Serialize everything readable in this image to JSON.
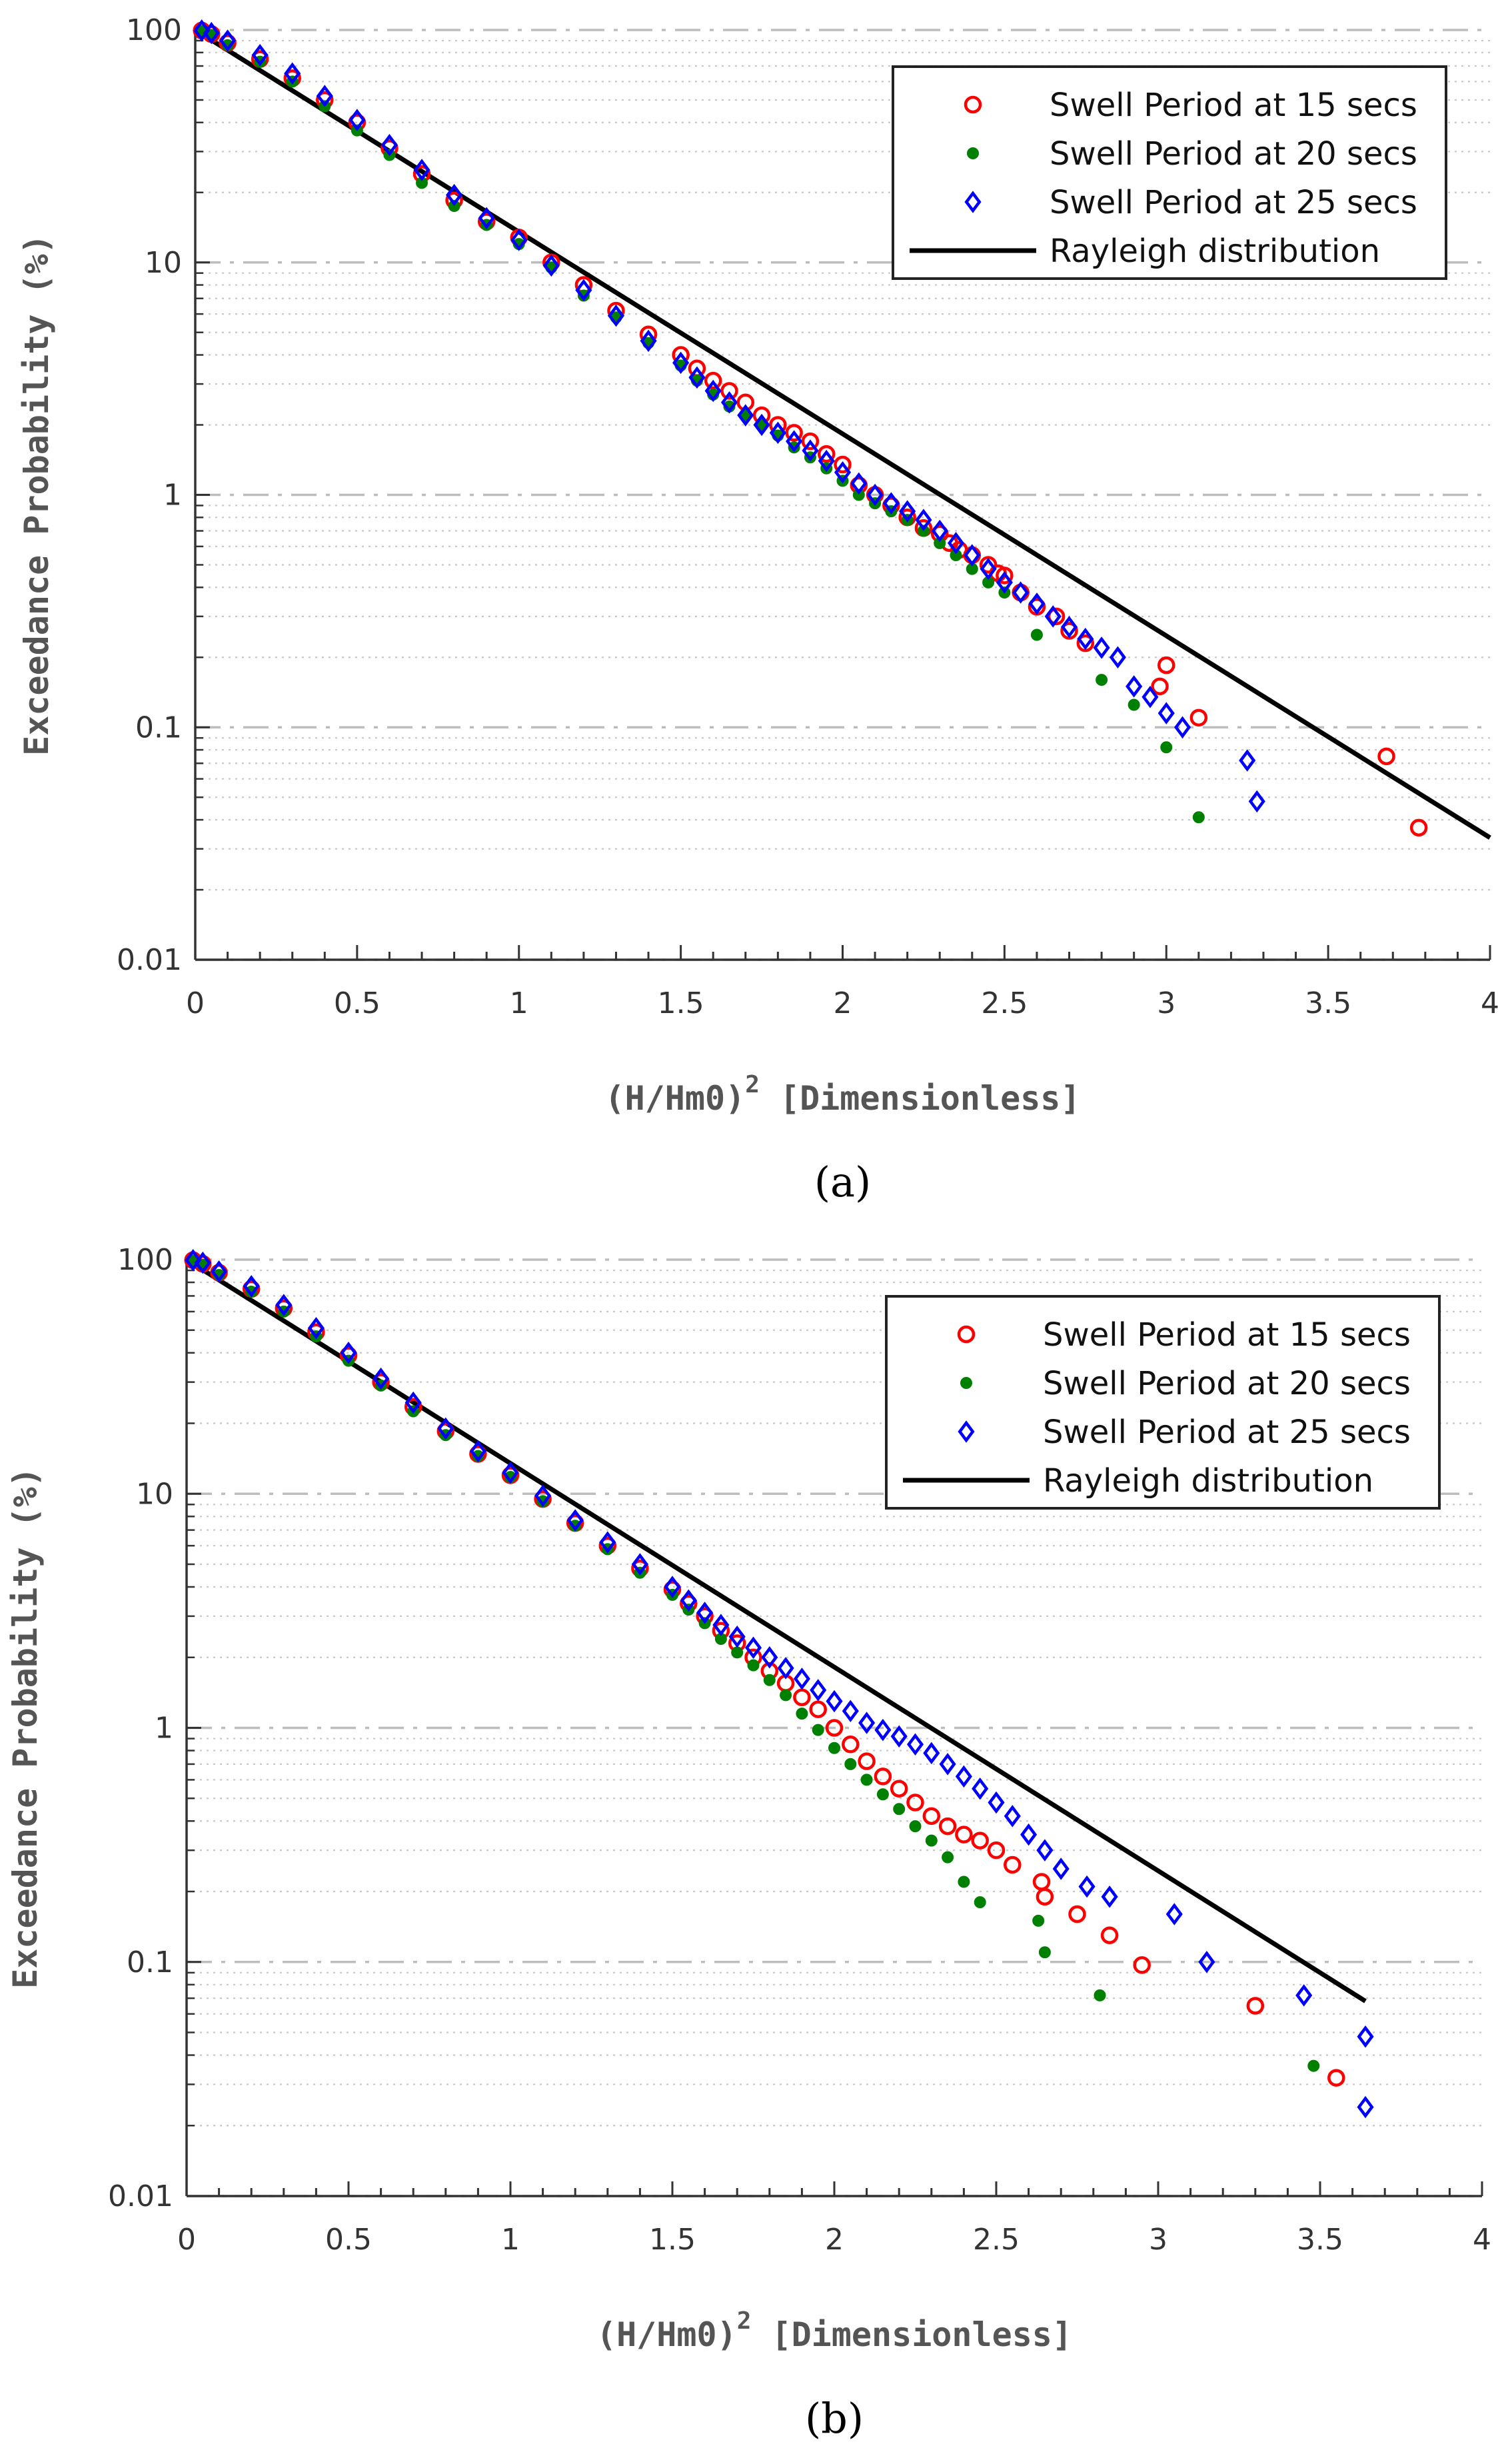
{
  "chart_data": [
    {
      "type": "scatter",
      "caption": "(a)",
      "xlabel": "(H/Hm0)",
      "xlabel_sup": "2",
      "xlabel_suffix": " [Dimensionless]",
      "ylabel": "Exceedance Probability (%)",
      "xlim": [
        0,
        4
      ],
      "ylim": [
        0.01,
        100
      ],
      "yscale": "log",
      "grid": true,
      "legend_position": "top-right",
      "x_ticks": [
        "0",
        "0.5",
        "1",
        "1.5",
        "2",
        "2.5",
        "3",
        "3.5",
        "4"
      ],
      "y_ticks": [
        "0.01",
        "0.1",
        "1",
        "10",
        "100"
      ],
      "series": [
        {
          "name": "Swell Period at 15 secs",
          "marker": "circle",
          "color": "#ff0000",
          "x": [
            0.02,
            0.05,
            0.1,
            0.2,
            0.3,
            0.4,
            0.5,
            0.6,
            0.7,
            0.8,
            0.9,
            1.0,
            1.1,
            1.2,
            1.3,
            1.4,
            1.5,
            1.55,
            1.6,
            1.65,
            1.7,
            1.75,
            1.8,
            1.85,
            1.9,
            1.95,
            2.0,
            2.05,
            2.1,
            2.15,
            2.2,
            2.25,
            2.3,
            2.33,
            2.36,
            2.4,
            2.45,
            2.48,
            2.5,
            2.55,
            2.6,
            2.66,
            2.7,
            2.75,
            2.98,
            3.0,
            3.1,
            3.68,
            3.78
          ],
          "y": [
            99.5,
            96,
            88,
            75,
            62,
            50,
            40,
            31,
            24,
            18.5,
            15,
            12.8,
            10,
            8,
            6.2,
            4.9,
            4.0,
            3.5,
            3.1,
            2.8,
            2.5,
            2.2,
            2.0,
            1.85,
            1.7,
            1.5,
            1.35,
            1.1,
            1.0,
            0.9,
            0.8,
            0.72,
            0.68,
            0.62,
            0.58,
            0.55,
            0.5,
            0.46,
            0.45,
            0.38,
            0.33,
            0.3,
            0.26,
            0.23,
            0.15,
            0.185,
            0.11,
            0.075,
            0.037
          ]
        },
        {
          "name": "Swell Period at 20 secs",
          "marker": "dot",
          "color": "#008000",
          "x": [
            0.02,
            0.05,
            0.1,
            0.2,
            0.3,
            0.4,
            0.5,
            0.6,
            0.7,
            0.8,
            0.9,
            1.0,
            1.1,
            1.2,
            1.3,
            1.4,
            1.5,
            1.55,
            1.6,
            1.65,
            1.7,
            1.75,
            1.8,
            1.85,
            1.9,
            1.95,
            2.0,
            2.05,
            2.1,
            2.15,
            2.2,
            2.25,
            2.3,
            2.35,
            2.4,
            2.45,
            2.5,
            2.6,
            2.8,
            2.9,
            3.0,
            3.1
          ],
          "y": [
            99,
            95,
            86,
            73,
            60,
            47,
            37,
            29,
            22,
            17.5,
            14.5,
            12,
            9.5,
            7.2,
            5.8,
            4.5,
            3.6,
            3.1,
            2.7,
            2.4,
            2.2,
            2.0,
            1.8,
            1.6,
            1.45,
            1.3,
            1.15,
            1.0,
            0.92,
            0.85,
            0.78,
            0.7,
            0.62,
            0.55,
            0.48,
            0.42,
            0.38,
            0.25,
            0.16,
            0.125,
            0.082,
            0.041
          ]
        },
        {
          "name": "Swell Period at 25 secs",
          "marker": "diamond",
          "color": "#0000ff",
          "x": [
            0.02,
            0.05,
            0.1,
            0.2,
            0.3,
            0.4,
            0.5,
            0.6,
            0.7,
            0.8,
            0.9,
            1.0,
            1.1,
            1.2,
            1.3,
            1.4,
            1.5,
            1.55,
            1.6,
            1.65,
            1.7,
            1.75,
            1.8,
            1.85,
            1.9,
            1.95,
            2.0,
            2.05,
            2.1,
            2.15,
            2.2,
            2.25,
            2.3,
            2.35,
            2.4,
            2.45,
            2.5,
            2.55,
            2.6,
            2.65,
            2.7,
            2.75,
            2.8,
            2.85,
            2.9,
            2.95,
            3.0,
            3.05,
            3.25,
            3.28
          ],
          "y": [
            99.5,
            97,
            90,
            78,
            65,
            52,
            41,
            32,
            25,
            19.5,
            15.5,
            12.5,
            9.7,
            7.6,
            5.9,
            4.6,
            3.7,
            3.2,
            2.8,
            2.5,
            2.2,
            2.0,
            1.85,
            1.7,
            1.55,
            1.4,
            1.25,
            1.12,
            1.0,
            0.92,
            0.85,
            0.78,
            0.7,
            0.62,
            0.55,
            0.48,
            0.42,
            0.38,
            0.34,
            0.3,
            0.27,
            0.24,
            0.22,
            0.2,
            0.15,
            0.135,
            0.115,
            0.1,
            0.072,
            0.048
          ]
        },
        {
          "name": "Rayleigh distribution",
          "marker": "line",
          "color": "#000000",
          "x": [
            0,
            4
          ],
          "y": [
            100,
            0.0335
          ]
        }
      ]
    },
    {
      "type": "scatter",
      "caption": "(b)",
      "xlabel": "(H/Hm0)",
      "xlabel_sup": "2",
      "xlabel_suffix": " [Dimensionless]",
      "ylabel": "Exceedance Probability (%)",
      "xlim": [
        0,
        4
      ],
      "ylim": [
        0.01,
        100
      ],
      "yscale": "log",
      "grid": true,
      "legend_position": "top-right",
      "x_ticks": [
        "0",
        "0.5",
        "1",
        "1.5",
        "2",
        "2.5",
        "3",
        "3.5",
        "4"
      ],
      "y_ticks": [
        "0.01",
        "0.1",
        "1",
        "10",
        "100"
      ],
      "series": [
        {
          "name": "Swell Period at 15 secs",
          "marker": "circle",
          "color": "#ff0000",
          "x": [
            0.02,
            0.05,
            0.1,
            0.2,
            0.3,
            0.4,
            0.5,
            0.6,
            0.7,
            0.8,
            0.9,
            1.0,
            1.1,
            1.2,
            1.3,
            1.4,
            1.5,
            1.55,
            1.6,
            1.65,
            1.7,
            1.75,
            1.8,
            1.85,
            1.9,
            1.95,
            2.0,
            2.05,
            2.1,
            2.15,
            2.2,
            2.25,
            2.3,
            2.35,
            2.4,
            2.45,
            2.5,
            2.55,
            2.64,
            2.65,
            2.75,
            2.85,
            2.95,
            3.3,
            3.55
          ],
          "y": [
            99.5,
            96,
            88,
            75,
            62,
            49,
            39,
            30,
            23.5,
            18.5,
            14.8,
            12,
            9.5,
            7.5,
            6.0,
            4.8,
            3.9,
            3.4,
            3.0,
            2.6,
            2.3,
            2.0,
            1.75,
            1.55,
            1.35,
            1.2,
            1.0,
            0.85,
            0.72,
            0.62,
            0.55,
            0.48,
            0.42,
            0.38,
            0.35,
            0.33,
            0.3,
            0.26,
            0.22,
            0.19,
            0.16,
            0.13,
            0.097,
            0.065,
            0.032
          ]
        },
        {
          "name": "Swell Period at 20 secs",
          "marker": "dot",
          "color": "#008000",
          "x": [
            0.02,
            0.05,
            0.1,
            0.2,
            0.3,
            0.4,
            0.5,
            0.6,
            0.7,
            0.8,
            0.9,
            1.0,
            1.1,
            1.2,
            1.3,
            1.4,
            1.5,
            1.55,
            1.6,
            1.65,
            1.7,
            1.75,
            1.8,
            1.85,
            1.9,
            1.95,
            2.0,
            2.05,
            2.1,
            2.15,
            2.2,
            2.25,
            2.3,
            2.35,
            2.4,
            2.45,
            2.63,
            2.65,
            2.82,
            3.48
          ],
          "y": [
            99,
            95,
            86,
            73,
            60,
            47,
            37,
            29,
            22.5,
            17.8,
            14.5,
            11.8,
            9.3,
            7.3,
            5.8,
            4.6,
            3.7,
            3.2,
            2.8,
            2.4,
            2.1,
            1.85,
            1.6,
            1.38,
            1.15,
            0.98,
            0.82,
            0.7,
            0.6,
            0.52,
            0.45,
            0.38,
            0.33,
            0.28,
            0.22,
            0.18,
            0.15,
            0.11,
            0.072,
            0.036
          ]
        },
        {
          "name": "Swell Period at 25 secs",
          "marker": "diamond",
          "color": "#0000ff",
          "x": [
            0.02,
            0.05,
            0.1,
            0.2,
            0.3,
            0.4,
            0.5,
            0.6,
            0.7,
            0.8,
            0.9,
            1.0,
            1.1,
            1.2,
            1.3,
            1.4,
            1.5,
            1.55,
            1.6,
            1.65,
            1.7,
            1.75,
            1.8,
            1.85,
            1.9,
            1.95,
            2.0,
            2.05,
            2.1,
            2.15,
            2.2,
            2.25,
            2.3,
            2.35,
            2.4,
            2.45,
            2.5,
            2.55,
            2.6,
            2.65,
            2.7,
            2.78,
            2.85,
            3.05,
            3.15,
            3.45,
            3.64,
            3.64
          ],
          "y": [
            99.5,
            97,
            89,
            77,
            64,
            51,
            40,
            31,
            24.5,
            19,
            15.2,
            12.3,
            9.8,
            7.7,
            6.2,
            5.0,
            4.0,
            3.5,
            3.1,
            2.75,
            2.45,
            2.2,
            2.0,
            1.8,
            1.62,
            1.45,
            1.3,
            1.18,
            1.05,
            0.98,
            0.92,
            0.85,
            0.78,
            0.7,
            0.62,
            0.55,
            0.48,
            0.42,
            0.35,
            0.3,
            0.25,
            0.21,
            0.19,
            0.16,
            0.1,
            0.072,
            0.048,
            0.024
          ]
        },
        {
          "name": "Rayleigh distribution",
          "marker": "line",
          "color": "#000000",
          "x": [
            0,
            3.64
          ],
          "y": [
            100,
            0.068
          ]
        }
      ]
    }
  ]
}
